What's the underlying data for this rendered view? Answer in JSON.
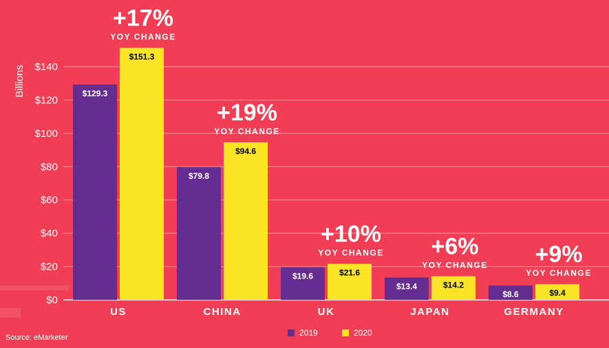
{
  "chart_data": {
    "type": "bar",
    "ylabel": "Billions",
    "ylim": [
      0,
      150
    ],
    "yticks": [
      "$0",
      "$20",
      "$40",
      "$60",
      "$80",
      "$100",
      "$120",
      "$140"
    ],
    "ytick_values": [
      0,
      20,
      40,
      60,
      80,
      100,
      120,
      140
    ],
    "grid": true,
    "legend_position": "bottom-center",
    "categories": [
      "US",
      "CHINA",
      "UK",
      "JAPAN",
      "GERMANY"
    ],
    "series": [
      {
        "name": "2019",
        "color": "#652d90",
        "values": [
          129.3,
          79.8,
          19.6,
          13.4,
          8.6
        ],
        "labels": [
          "$129.3",
          "$79.8",
          "$19.6",
          "$13.4",
          "$8.6"
        ]
      },
      {
        "name": "2020",
        "color": "#fde427",
        "values": [
          151.3,
          94.6,
          21.6,
          14.2,
          9.4
        ],
        "labels": [
          "$151.3",
          "$94.6",
          "$21.6",
          "$14.2",
          "$9.4"
        ]
      }
    ],
    "annotations": [
      {
        "category": "US",
        "change": "+17%",
        "caption": "YOY CHANGE"
      },
      {
        "category": "CHINA",
        "change": "+19%",
        "caption": "YOY CHANGE"
      },
      {
        "category": "UK",
        "change": "+10%",
        "caption": "YOY CHANGE"
      },
      {
        "category": "JAPAN",
        "change": "+6%",
        "caption": "YOY CHANGE"
      },
      {
        "category": "GERMANY",
        "change": "+9%",
        "caption": "YOY CHANGE"
      }
    ]
  },
  "source": "Source: eMarketer"
}
